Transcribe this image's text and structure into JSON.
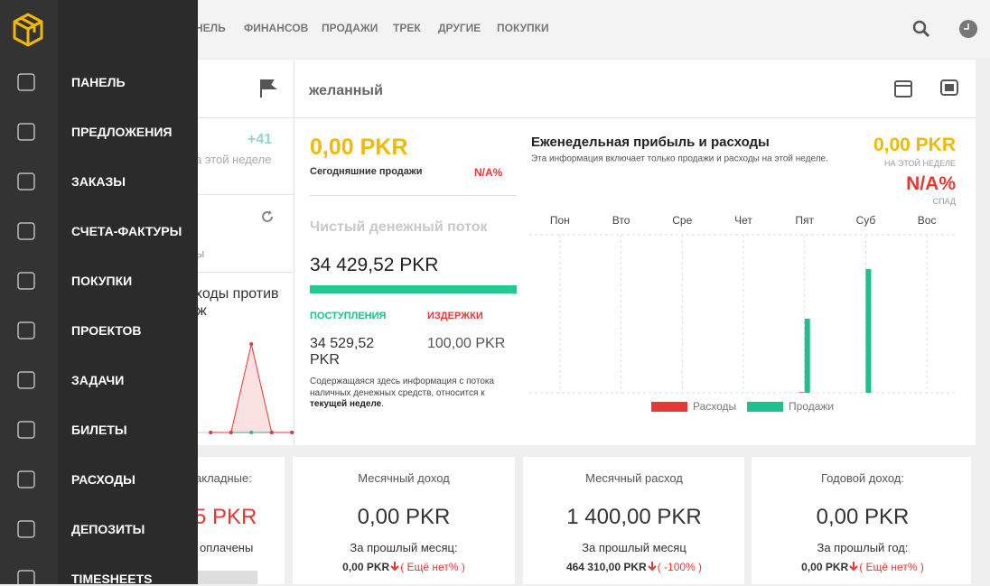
{
  "sidebar": {
    "menu": [
      "ПАНЕЛЬ",
      "ПРЕДЛОЖЕНИЯ",
      "ЗАКАЗЫ",
      "СЧЕТА-ФАКТУРЫ",
      "ПОКУПКИ",
      "ПРОЕКТОВ",
      "ЗАДАЧИ",
      "БИЛЕТЫ",
      "РАСХОДЫ",
      "ДЕПОЗИТЫ",
      "TIMESHEETS"
    ]
  },
  "topnav": {
    "items": [
      "НЕЛЬ",
      "ФИНАНСОВ",
      "ПРОДАЖИ",
      "ТРЕК",
      "ДРУГИЕ",
      "ПОКУПКИ"
    ]
  },
  "left_panel": {
    "change": "+41",
    "period": "а этой неделе",
    "fragment": "ы",
    "chart_title_lines": [
      "ходы против",
      "ж"
    ]
  },
  "summary": {
    "header": "желанный",
    "today_amount": "0,00 PKR",
    "today_label": "Сегодняшние продажи",
    "today_change": "N/A%",
    "cashflow_title": "Чистый денежный поток",
    "cashflow_amount": "34 429,52 PKR",
    "income_label": "ПОСТУПЛЕНИЯ",
    "expense_label": "ИЗДЕРЖКИ",
    "income_lines": [
      "34 529,52",
      "PKR"
    ],
    "expense_amount": "100,00 PKR",
    "note_lines": [
      "Содержащаяся здесь информация с потока",
      "наличных денежных средств, относится к"
    ],
    "note_bold": "текущей неделе",
    "note_end": "."
  },
  "weekly_header": {
    "amount": "0,00 PKR",
    "amount_label": "НА ЭТОЙ НЕДЕЛЕ",
    "change": "N/A%",
    "change_label": "СПАД"
  },
  "chart_data": [
    {
      "type": "bar",
      "title": "Еженедельная прибыль и расходы",
      "subtitle": "Эта информация включает только продажи и расходы на этой неделе.",
      "categories": [
        "Пон",
        "Вто",
        "Сре",
        "Чет",
        "Пят",
        "Суб",
        "Вос"
      ],
      "series": [
        {
          "name": "Расходы",
          "color": "#e53935",
          "values": [
            0,
            0,
            0,
            0,
            100,
            0,
            0
          ]
        },
        {
          "name": "Продажи",
          "color": "#1fbf8f",
          "values": [
            0,
            0,
            0,
            0,
            12930,
            21600,
            0
          ]
        }
      ],
      "ylim": [
        0,
        27600
      ],
      "grid": true
    },
    {
      "type": "line",
      "categories": [
        null,
        null,
        null,
        null,
        null
      ],
      "series": [
        {
          "color": "#e53935",
          "values": [
            0,
            0,
            100,
            0,
            0
          ]
        },
        {
          "color": "#1fbf8f",
          "values": [
            0,
            0,
            0,
            0,
            0
          ]
        }
      ],
      "ylim": [
        0,
        125
      ]
    }
  ],
  "cards": [
    {
      "title": "акладные:",
      "value": "5 PKR",
      "footer": "оплачены"
    },
    {
      "title": "Месячный доход",
      "value": "0,00 PKR",
      "footer": "За прошлый месяц:",
      "prev": "0,00 PKR",
      "change": "( Ещё нет% )"
    },
    {
      "title": "Месячный расход",
      "value": "1 400,00 PKR",
      "footer": "За прошлый месяц",
      "prev": "464 310,00 PKR",
      "change": "( -100% )"
    },
    {
      "title": "Годовой доход:",
      "value": "0,00 PKR",
      "footer": "За прошлый год:",
      "prev": "0,00 PKR",
      "change": "( Ещё нет% )"
    }
  ]
}
